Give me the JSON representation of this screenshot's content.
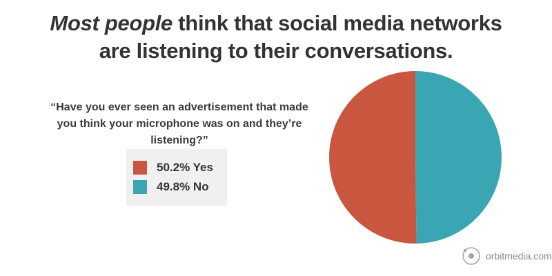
{
  "header": {
    "title_emphasis": "Most people",
    "title_rest_line1": " think that social media networks",
    "title_line2": "are listening to their conversations."
  },
  "question": "“Have you ever seen an advertisement that made you think your microphone was on and they’re listening?”",
  "chart_data": {
    "type": "pie",
    "slices": [
      {
        "label": "Yes",
        "value": 50.2,
        "display": "50.2% Yes",
        "color": "#c9563e"
      },
      {
        "label": "No",
        "value": 49.8,
        "display": "49.8% No",
        "color": "#3aa6b4"
      }
    ],
    "legend_position": "left"
  },
  "brand": {
    "logo_icon": "orbit-icon",
    "name": "orbitmedia.com"
  }
}
